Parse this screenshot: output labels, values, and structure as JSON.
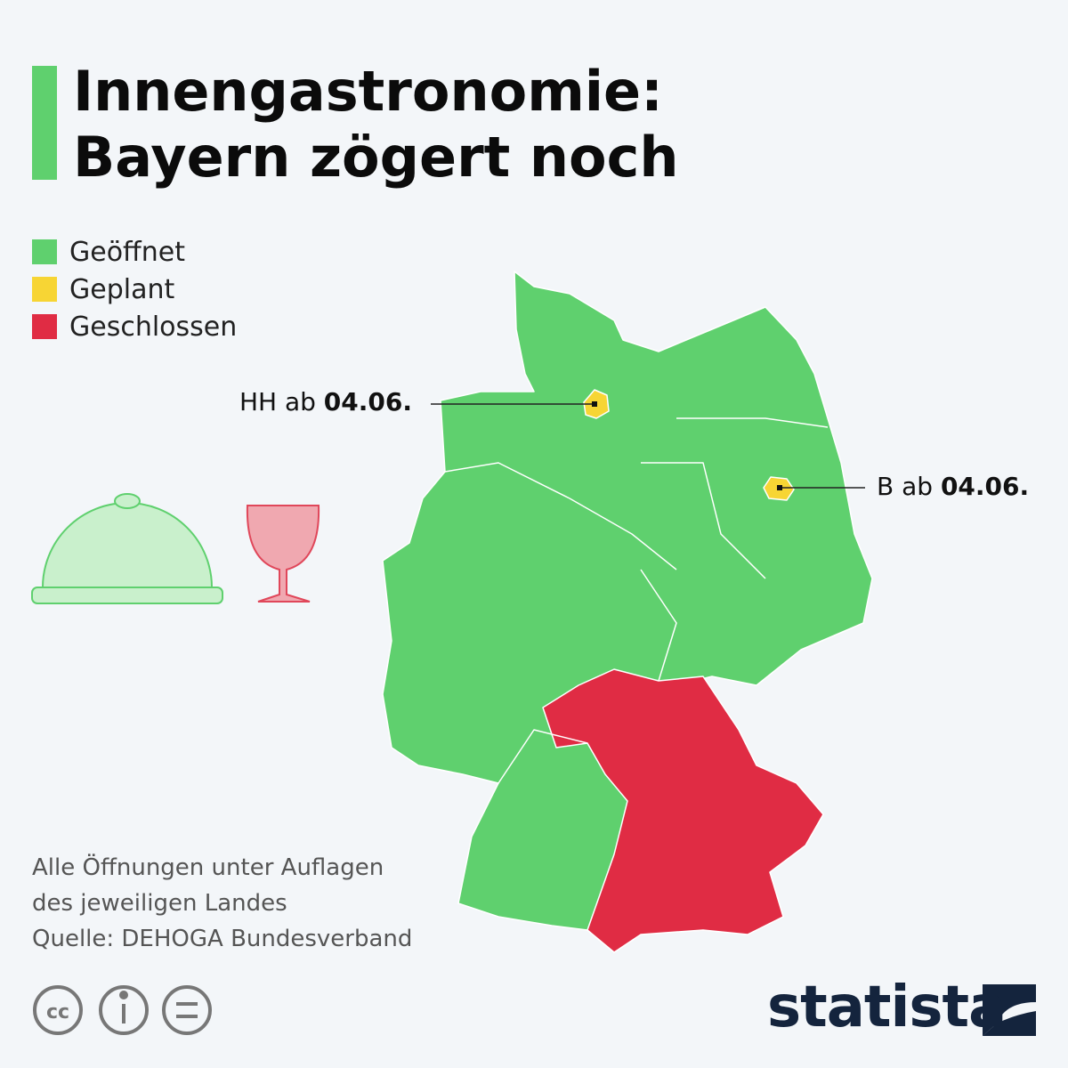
{
  "header": {
    "title": [
      "Innengastronomie:",
      "Bayern zögert noch"
    ]
  },
  "legend": [
    {
      "label": "Geöffnet",
      "color": "#5fd06e"
    },
    {
      "label": "Geplant",
      "color": "#f7d534"
    },
    {
      "label": "Geschlossen",
      "color": "#e02c44"
    }
  ],
  "annotations": [
    {
      "prefix": "HH ab",
      "date": "04.06."
    },
    {
      "prefix": "B ab",
      "date": "04.06."
    }
  ],
  "footer": {
    "note": [
      "Alle Öffnungen unter Auflagen",
      "des jeweiligen Landes"
    ],
    "source": "Quelle: DEHOGA Bundesverband",
    "brand": "statista"
  }
}
